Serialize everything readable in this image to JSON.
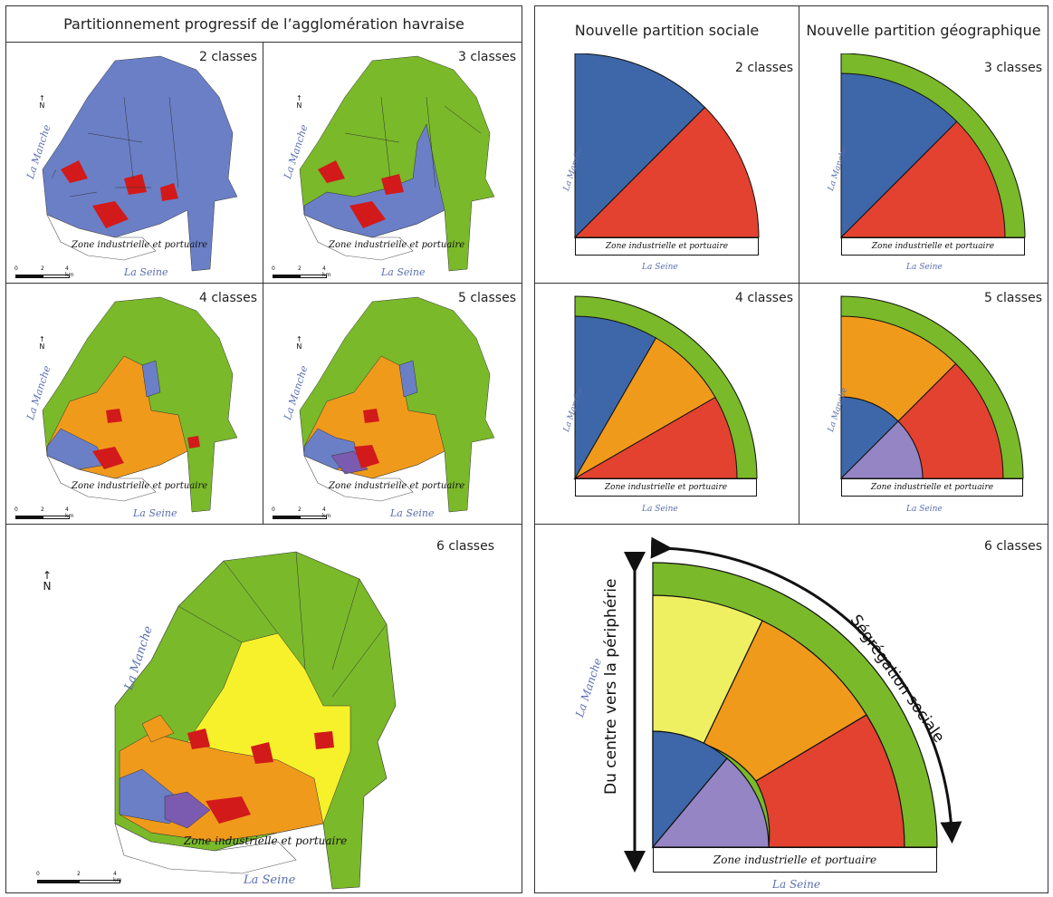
{
  "left_panel": {
    "title": "Partitionnement progressif de l’agglomération havraise",
    "maps": [
      {
        "classes": "2 classes"
      },
      {
        "classes": "3 classes"
      },
      {
        "classes": "4 classes"
      },
      {
        "classes": "5 classes"
      },
      {
        "classes": "6 classes"
      }
    ],
    "sea_label": "La Manche",
    "river_label": "La Seine",
    "zone_label": "Zone industrielle et portuaire",
    "north_label": "N",
    "scale": {
      "t0": "0",
      "t1": "2",
      "t2": "4 km"
    }
  },
  "right_panel": {
    "title_social": "Nouvelle partition sociale",
    "title_geo": "Nouvelle partition géographique",
    "diagrams": [
      {
        "classes": "2 classes"
      },
      {
        "classes": "3 classes"
      },
      {
        "classes": "4 classes"
      },
      {
        "classes": "5 classes"
      },
      {
        "classes": "6 classes"
      }
    ],
    "sea_label": "La Manche",
    "river_label": "La Seine",
    "zone_label": "Zone industrielle et portuaire",
    "axis_vertical": "Du centre vers la périphérie",
    "axis_arc": "Ségrégation sociale"
  },
  "colors": {
    "blue": "#3d67a8",
    "map_blue": "#6b7fc7",
    "red": "#e2422f",
    "map_red": "#d21a1a",
    "green": "#7ab929",
    "orange": "#f09a1c",
    "purple": "#9585c4",
    "yellow": "#eef062",
    "map_yellow": "#f7f12b"
  }
}
